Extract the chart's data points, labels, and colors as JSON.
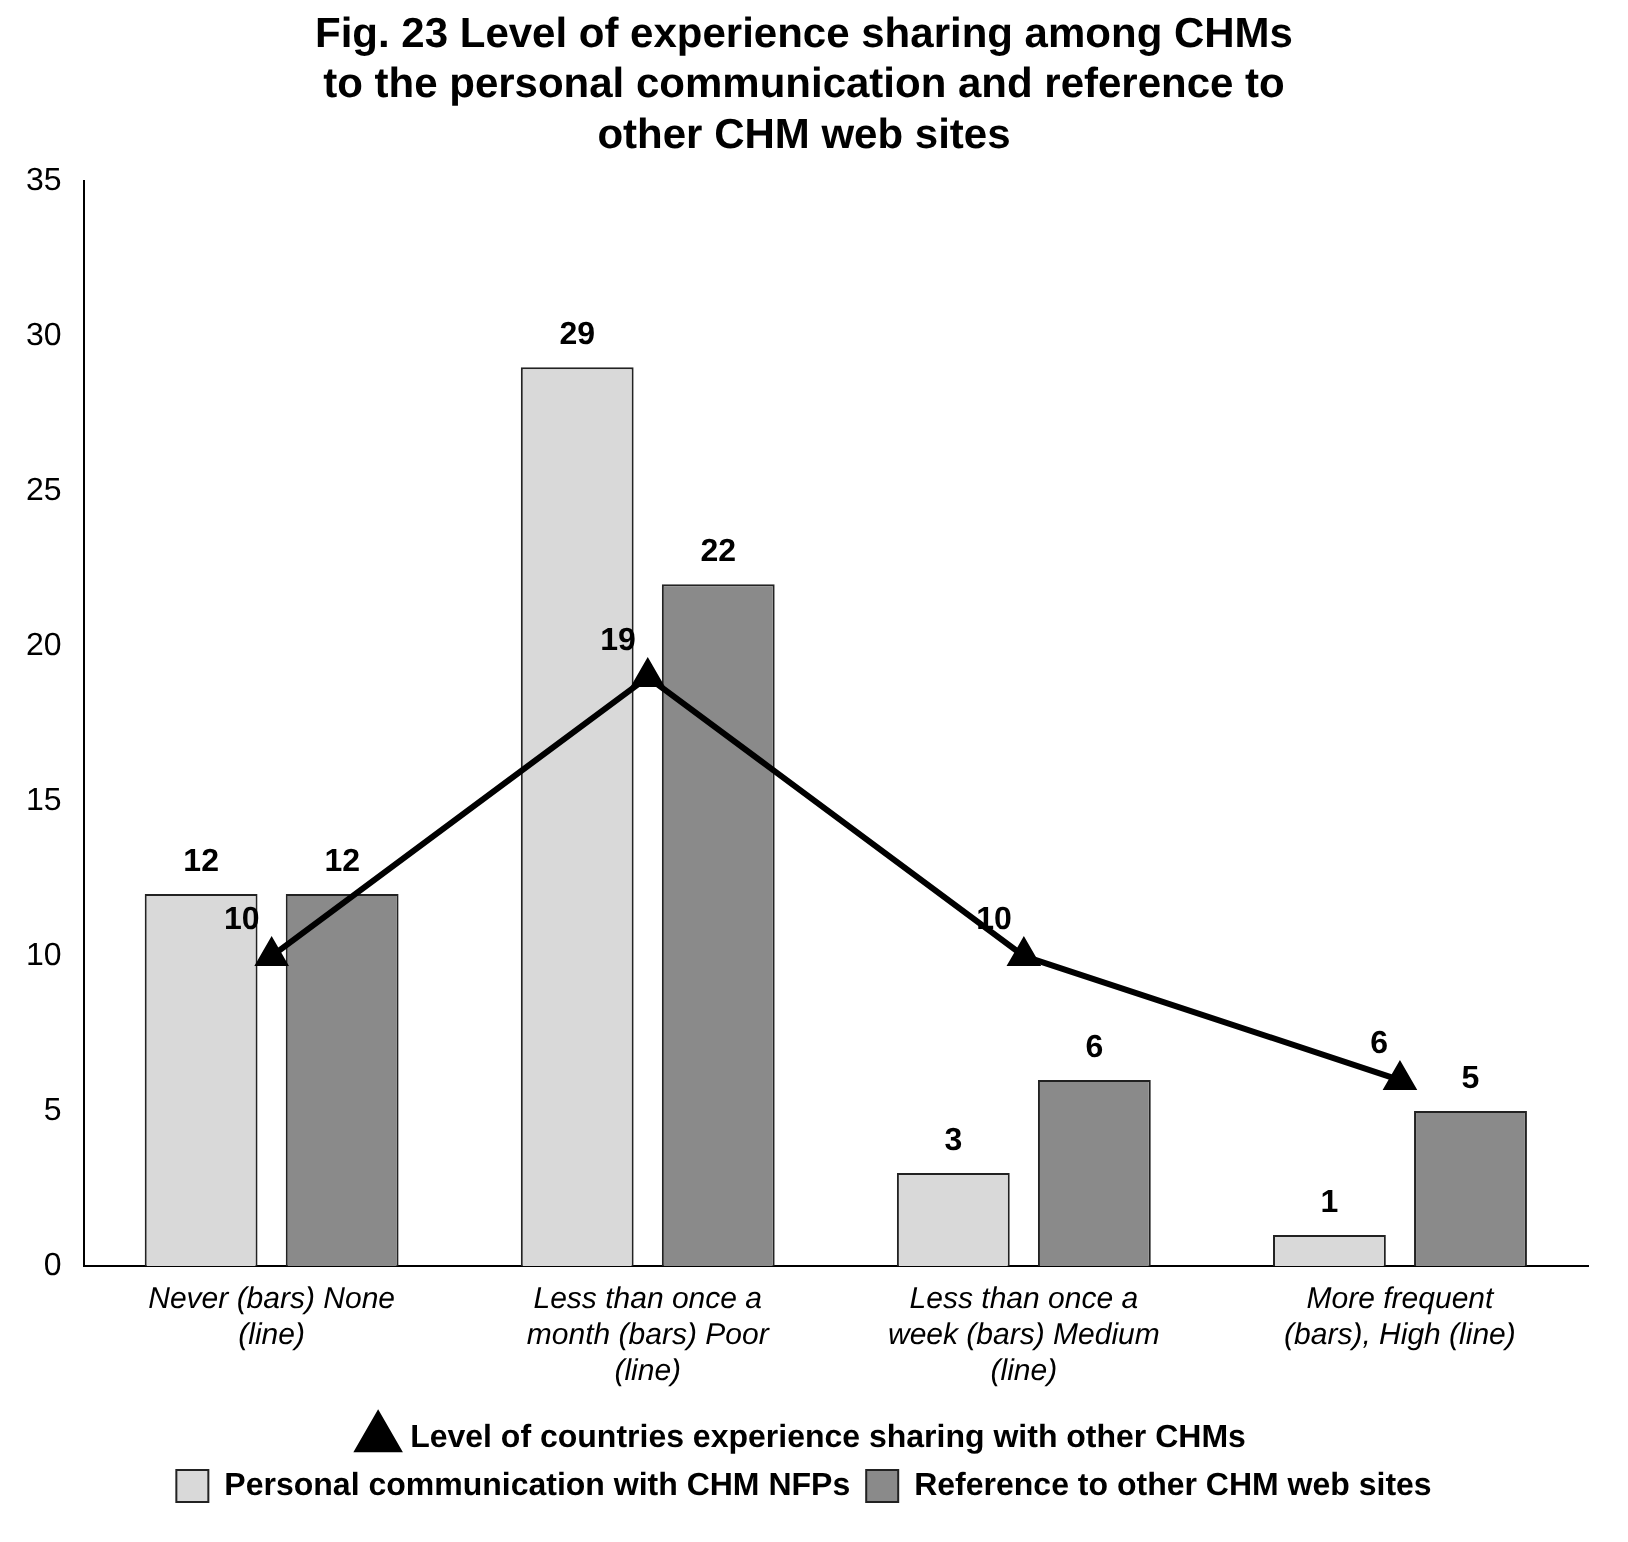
{
  "chart_data": {
    "type": "bar",
    "title": "Fig. 23 Level of experience sharing among CHMs to the personal communication and reference to other CHM web sites",
    "categories": [
      "Never (bars) None (line)",
      "Less than once a month (bars) Poor (line)",
      "Less than once a week (bars) Medium (line)",
      "More frequent (bars), High (line)"
    ],
    "series": [
      {
        "name": "Personal communication with CHM NFPs",
        "color": "#d9d9d9",
        "values": [
          12,
          29,
          3,
          1
        ]
      },
      {
        "name": "Reference to other CHM web sites",
        "color": "#8a8a8a",
        "values": [
          12,
          22,
          6,
          5
        ]
      },
      {
        "name": "Level of countries experience sharing with other CHMs",
        "type": "line",
        "color": "#000000",
        "values": [
          10,
          19,
          10,
          6
        ],
        "marker": "triangle",
        "line_style": "solid"
      }
    ],
    "ylim": [
      0,
      35
    ],
    "yticks": [
      0,
      5,
      10,
      15,
      20,
      25,
      30,
      35
    ],
    "grid": false,
    "legend": "bottom",
    "data_labels": true
  }
}
